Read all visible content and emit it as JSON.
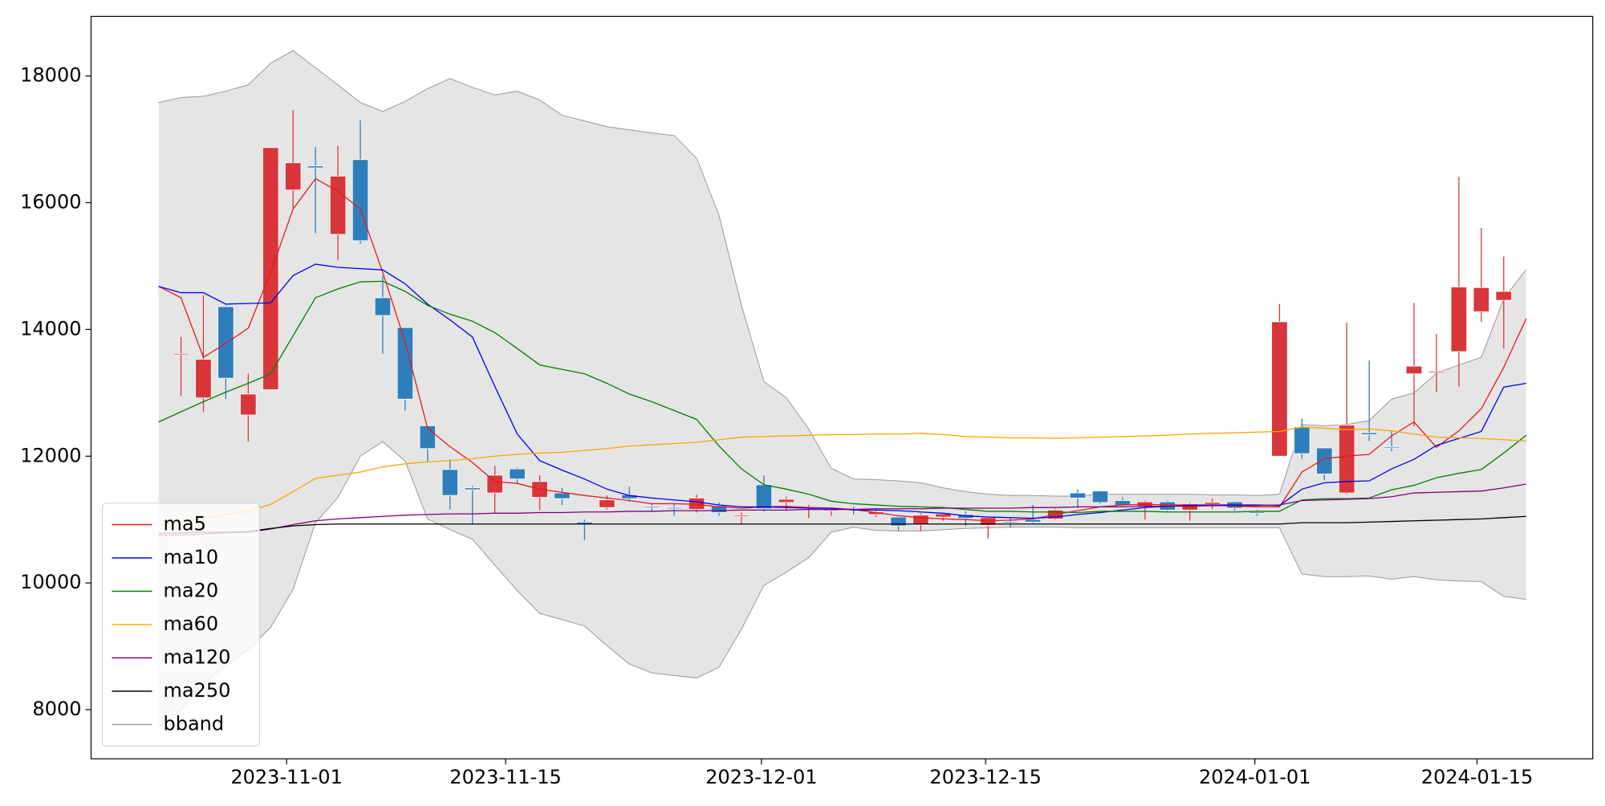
{
  "chart_data": {
    "type": "candlestick",
    "xlim": [
      -3.01,
      63.97
    ],
    "ylim": [
      7225,
      18940
    ],
    "xticks": [
      {
        "value": 5.71,
        "label": "2023-11-01"
      },
      {
        "value": 15.48,
        "label": "2023-11-15"
      },
      {
        "value": 26.89,
        "label": "2023-12-01"
      },
      {
        "value": 36.89,
        "label": "2023-12-15"
      },
      {
        "value": 48.9,
        "label": "2024-01-01"
      },
      {
        "value": 58.81,
        "label": "2024-01-15"
      }
    ],
    "yticks": [
      8000,
      10000,
      12000,
      14000,
      16000,
      18000
    ],
    "legend": "lower left",
    "up_color": "#d8363a",
    "down_color": "#2f7ebc",
    "candles": {
      "open": [
        null,
        13600,
        12920,
        14360,
        12650,
        13050,
        16200,
        16580,
        15500,
        16680,
        14500,
        14030,
        12480,
        11790,
        11500,
        11420,
        11800,
        11350,
        11420,
        10960,
        11190,
        11390,
        11210,
        11190,
        11160,
        11220,
        11050,
        11550,
        11270,
        11190,
        11140,
        11170,
        11080,
        11040,
        10920,
        11040,
        11080,
        10910,
        10970,
        11000,
        11010,
        11420,
        11450,
        11300,
        11200,
        11280,
        11150,
        11240,
        11280,
        11120,
        12000,
        12460,
        12130,
        11420,
        12370,
        12150,
        13300,
        13320,
        13650,
        14280,
        14460,
        null
      ],
      "high": [
        null,
        13880,
        14540,
        14380,
        13300,
        16870,
        17460,
        16880,
        16900,
        17300,
        14850,
        14030,
        12480,
        11950,
        11530,
        11850,
        11820,
        11700,
        11500,
        11000,
        11380,
        11520,
        11250,
        11240,
        11390,
        11270,
        11110,
        11700,
        11360,
        11230,
        11190,
        11200,
        11160,
        11050,
        11100,
        11100,
        11130,
        11050,
        11020,
        11230,
        11170,
        11480,
        11460,
        11350,
        11300,
        11300,
        11270,
        11330,
        11290,
        11150,
        14400,
        12590,
        12130,
        14110,
        13510,
        12400,
        14420,
        13930,
        16410,
        15600,
        15150,
        null
      ],
      "low": [
        null,
        12950,
        12700,
        12900,
        12230,
        13050,
        15900,
        15520,
        15100,
        15350,
        13620,
        12720,
        11920,
        11160,
        10920,
        11100,
        11560,
        11150,
        11230,
        10680,
        11160,
        11280,
        11130,
        11060,
        11110,
        11060,
        10920,
        11130,
        11140,
        11020,
        11060,
        11080,
        11040,
        10820,
        10820,
        10980,
        10900,
        10700,
        10870,
        10940,
        10990,
        11180,
        11250,
        11200,
        11000,
        11130,
        10980,
        11170,
        11140,
        11060,
        12000,
        11960,
        11620,
        11400,
        12240,
        12080,
        12470,
        13010,
        13100,
        14120,
        13700,
        null
      ],
      "close": [
        null,
        13620,
        13530,
        13230,
        12980,
        16870,
        16630,
        16550,
        16420,
        15400,
        14220,
        12900,
        12120,
        11380,
        11470,
        11700,
        11640,
        11600,
        11330,
        10930,
        11310,
        11330,
        11190,
        11170,
        11340,
        11110,
        11070,
        11170,
        11320,
        11200,
        11160,
        11150,
        11120,
        10900,
        11070,
        11090,
        11020,
        11030,
        10950,
        10960,
        11150,
        11340,
        11270,
        11220,
        11280,
        11150,
        11250,
        11270,
        11180,
        11100,
        14120,
        12040,
        11720,
        12490,
        12340,
        12130,
        13420,
        13340,
        14670,
        14660,
        14600,
        null
      ]
    },
    "series": [
      {
        "name": "ma5",
        "color": "#e8191a",
        "values": [
          14680,
          14500,
          13560,
          13780,
          14020,
          14900,
          15900,
          16380,
          16180,
          15900,
          14900,
          13800,
          12440,
          12150,
          11900,
          11600,
          11570,
          11480,
          11430,
          11380,
          11340,
          11300,
          11250,
          11250,
          11240,
          11200,
          11180,
          11200,
          11210,
          11190,
          11180,
          11160,
          11110,
          11060,
          11030,
          11010,
          11000,
          10980,
          10990,
          11010,
          11080,
          11140,
          11200,
          11230,
          11240,
          11230,
          11230,
          11230,
          11210,
          11200,
          11200,
          11750,
          11960,
          12000,
          12030,
          12320,
          12540,
          12140,
          12400,
          12750,
          13400,
          14170
        ]
      },
      {
        "name": "ma10",
        "color": "#0000ee",
        "values": [
          14680,
          14580,
          14580,
          14400,
          14410,
          14420,
          14850,
          15030,
          14980,
          14960,
          14940,
          14720,
          14400,
          14150,
          13880,
          13100,
          12350,
          11930,
          11780,
          11640,
          11480,
          11380,
          11340,
          11310,
          11280,
          11230,
          11200,
          11200,
          11190,
          11180,
          11180,
          11150,
          11150,
          11140,
          11120,
          11100,
          11060,
          11040,
          11030,
          11020,
          11040,
          11080,
          11110,
          11150,
          11190,
          11210,
          11220,
          11230,
          11230,
          11230,
          11220,
          11480,
          11580,
          11600,
          11610,
          11800,
          11950,
          12170,
          12280,
          12390,
          13090,
          13150
        ]
      },
      {
        "name": "ma20",
        "color": "#008000",
        "values": [
          12540,
          12700,
          12860,
          13010,
          13150,
          13300,
          13900,
          14500,
          14640,
          14750,
          14760,
          14600,
          14380,
          14240,
          14130,
          13950,
          13700,
          13440,
          13370,
          13300,
          13150,
          12980,
          12860,
          12720,
          12580,
          12160,
          11800,
          11550,
          11480,
          11400,
          11290,
          11250,
          11230,
          11210,
          11200,
          11190,
          11160,
          11130,
          11130,
          11120,
          11120,
          11110,
          11130,
          11130,
          11130,
          11120,
          11120,
          11120,
          11120,
          11130,
          11130,
          11310,
          11330,
          11330,
          11340,
          11470,
          11540,
          11660,
          11730,
          11790,
          12050,
          12330
        ]
      },
      {
        "name": "ma60",
        "color": "#ffa500",
        "values": [
          10900,
          10960,
          11020,
          11080,
          11130,
          11240,
          11440,
          11650,
          11700,
          11750,
          11830,
          11880,
          11910,
          11930,
          11960,
          12000,
          12030,
          12050,
          12060,
          12090,
          12120,
          12160,
          12180,
          12200,
          12220,
          12260,
          12300,
          12310,
          12320,
          12330,
          12340,
          12340,
          12350,
          12350,
          12360,
          12340,
          12310,
          12300,
          12290,
          12290,
          12280,
          12290,
          12300,
          12310,
          12320,
          12330,
          12350,
          12360,
          12370,
          12380,
          12390,
          12460,
          12440,
          12420,
          12430,
          12400,
          12350,
          12300,
          12290,
          12280,
          12260,
          12240
        ]
      },
      {
        "name": "ma120",
        "color": "#800080",
        "values": [
          10750,
          10760,
          10770,
          10790,
          10800,
          10850,
          10920,
          10980,
          11010,
          11030,
          11050,
          11070,
          11080,
          11090,
          11090,
          11100,
          11100,
          11110,
          11110,
          11120,
          11120,
          11130,
          11130,
          11140,
          11140,
          11140,
          11150,
          11150,
          11150,
          11160,
          11160,
          11160,
          11170,
          11170,
          11170,
          11180,
          11180,
          11180,
          11180,
          11190,
          11190,
          11200,
          11200,
          11200,
          11210,
          11210,
          11210,
          11220,
          11220,
          11220,
          11230,
          11300,
          11310,
          11320,
          11330,
          11360,
          11420,
          11430,
          11440,
          11450,
          11500,
          11560
        ]
      },
      {
        "name": "ma250",
        "color": "#000000",
        "values": [
          10780,
          10790,
          10800,
          10800,
          10810,
          10860,
          10900,
          10920,
          10930,
          10930,
          10930,
          10930,
          10930,
          10930,
          10930,
          10930,
          10930,
          10930,
          10930,
          10930,
          10930,
          10930,
          10930,
          10930,
          10930,
          10930,
          10930,
          10930,
          10930,
          10930,
          10930,
          10930,
          10930,
          10930,
          10930,
          10930,
          10930,
          10930,
          10930,
          10930,
          10930,
          10930,
          10930,
          10930,
          10930,
          10930,
          10930,
          10930,
          10930,
          10930,
          10930,
          10950,
          10950,
          10950,
          10960,
          10970,
          10980,
          10990,
          11000,
          11010,
          11030,
          11050
        ]
      }
    ],
    "band": {
      "name": "bband",
      "color": "#999999",
      "fill": "#e5e5e5",
      "upper": [
        17580,
        17660,
        17680,
        17760,
        17860,
        18200,
        18400,
        18130,
        17860,
        17580,
        17440,
        17600,
        17800,
        17960,
        17820,
        17700,
        17760,
        17620,
        17380,
        17290,
        17200,
        17150,
        17100,
        17060,
        16700,
        15800,
        14380,
        13180,
        12920,
        12430,
        11810,
        11640,
        11630,
        11610,
        11580,
        11500,
        11440,
        11400,
        11380,
        11380,
        11370,
        11370,
        11400,
        11400,
        11400,
        11400,
        11400,
        11390,
        11390,
        11380,
        11400,
        12500,
        12480,
        12500,
        12560,
        12900,
        13000,
        13310,
        13440,
        13560,
        14480,
        14950
      ],
      "lower": [
        7720,
        8000,
        8400,
        8700,
        8950,
        9300,
        9900,
        10950,
        11350,
        12000,
        12230,
        11920,
        11010,
        10840,
        10690,
        10280,
        9880,
        9520,
        9420,
        9320,
        9010,
        8720,
        8580,
        8540,
        8500,
        8670,
        9270,
        9960,
        10170,
        10400,
        10800,
        10880,
        10830,
        10820,
        10820,
        10840,
        10860,
        10870,
        10880,
        10880,
        10880,
        10870,
        10870,
        10870,
        10870,
        10870,
        10870,
        10870,
        10870,
        10870,
        10870,
        10140,
        10100,
        10100,
        10110,
        10060,
        10100,
        10050,
        10030,
        10020,
        9790,
        9740
      ]
    }
  }
}
